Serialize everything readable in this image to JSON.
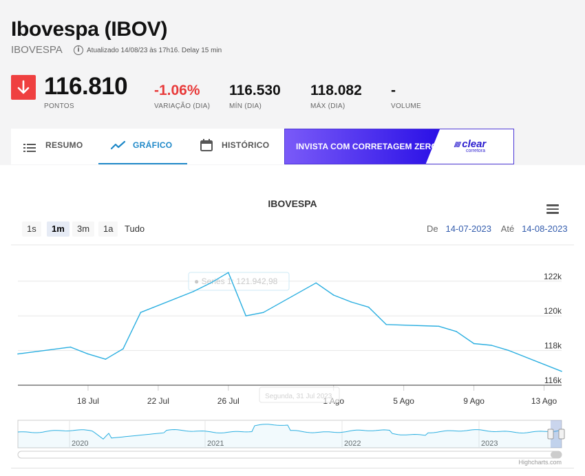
{
  "header": {
    "title": "Ibovespa (IBOV)",
    "ticker": "IBOVESPA",
    "updated": "Atualizado 14/08/23 às 17h16. Delay 15 min"
  },
  "quote": {
    "price": "116.810",
    "price_label": "PONTOS",
    "change": "-1.06%",
    "change_label": "VARIAÇÃO (DIA)",
    "min": "116.530",
    "min_label": "MÍN (DIA)",
    "max": "118.082",
    "max_label": "MÁX (DIA)",
    "volume": "-",
    "volume_label": "VOLUME"
  },
  "tabs": [
    {
      "label": "RESUMO",
      "icon": "list-icon"
    },
    {
      "label": "GRÁFICO",
      "icon": "chart-line-icon",
      "active": true
    },
    {
      "label": "HISTÓRICO",
      "icon": "calendar-icon"
    }
  ],
  "promo": {
    "text": "INVISTA COM CORRETAGEM ZERO",
    "logo": "clear",
    "logo_sub": "corretora"
  },
  "range_selector": {
    "buttons": [
      "1s",
      "1m",
      "3m",
      "1a",
      "Tudo"
    ],
    "selected": "1m",
    "from_label": "De",
    "from": "14-07-2023",
    "to_label": "Até",
    "to": "14-08-2023"
  },
  "tooltip_series": "● Series 1: 121.942,98",
  "tooltip_date": "Segunda, 31 Jul 2023",
  "credits": "Highcharts.com",
  "colors": {
    "series": "#29aee0",
    "down": "#ef4040",
    "active_tab": "#1e88c8",
    "promo": "#4b35d6"
  },
  "chart_data": {
    "type": "line",
    "title": "IBOVESPA",
    "x": [
      "2023-07-14",
      "2023-07-17",
      "2023-07-18",
      "2023-07-19",
      "2023-07-20",
      "2023-07-21",
      "2023-07-24",
      "2023-07-25",
      "2023-07-26",
      "2023-07-27",
      "2023-07-28",
      "2023-07-31",
      "2023-08-01",
      "2023-08-02",
      "2023-08-03",
      "2023-08-04",
      "2023-08-07",
      "2023-08-08",
      "2023-08-09",
      "2023-08-10",
      "2023-08-11",
      "2023-08-14"
    ],
    "values": [
      117800,
      118200,
      117800,
      117500,
      118100,
      120200,
      121400,
      121900,
      122500,
      120000,
      120200,
      121900,
      121200,
      120800,
      120500,
      119500,
      119400,
      119100,
      118400,
      118300,
      118000,
      116800
    ],
    "x_ticks": [
      "18 Jul",
      "22 Jul",
      "26 Jul",
      "1 Ago",
      "5 Ago",
      "9 Ago",
      "13 Ago"
    ],
    "y_ticks": [
      "116k",
      "118k",
      "120k",
      "122k"
    ],
    "ylim": [
      116000,
      123500
    ],
    "grid": true,
    "navigator_years": [
      "2020",
      "2021",
      "2022",
      "2023"
    ]
  }
}
